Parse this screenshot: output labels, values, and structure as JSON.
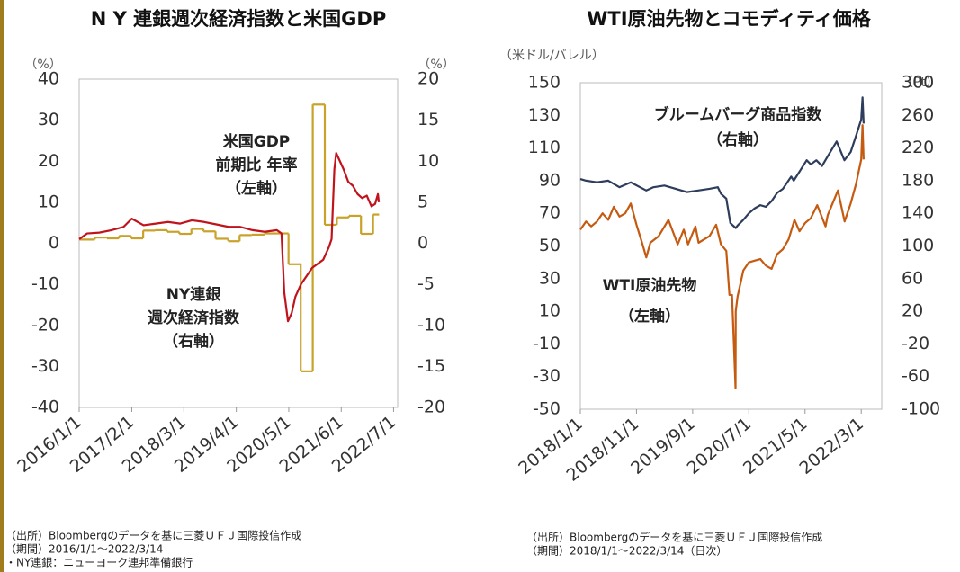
{
  "chart_data": [
    {
      "type": "line",
      "title": "N Y 連銀週次経済指数と米国GDP",
      "ylabel": "（%）",
      "y2label": "（%）",
      "xlim": [
        "2016/1/1",
        "2022/8/1"
      ],
      "xticks": [
        "2016/1/1",
        "2017/2/1",
        "2018/3/1",
        "2019/4/1",
        "2020/5/1",
        "2021/6/1",
        "2022/7/1"
      ],
      "ylim": [
        -40,
        40
      ],
      "yticks": [
        -40,
        -30,
        -20,
        -10,
        0,
        10,
        20,
        30,
        40
      ],
      "y2lim": [
        -20,
        20
      ],
      "y2ticks": [
        -20,
        -15,
        -10,
        -5,
        0,
        5,
        10,
        15,
        20
      ],
      "grid": false,
      "zero_line": false,
      "series": [
        {
          "color": "#c9a22a",
          "axis": "y",
          "step": true,
          "x_end": "2022/3/14",
          "x": [
            "2016/1/1",
            "2016/4/28",
            "2016/7/29",
            "2016/10/28",
            "2017/1/27",
            "2017/4/28",
            "2017/7/28",
            "2017/10/27",
            "2018/1/26",
            "2018/4/27",
            "2018/7/27",
            "2018/10/26",
            "2019/1/30",
            "2019/4/26",
            "2019/7/26",
            "2019/10/30",
            "2020/1/30",
            "2020/4/29",
            "2020/7/30",
            "2020/10/29",
            "2021/1/28",
            "2021/4/29",
            "2021/7/29",
            "2021/10/28",
            "2022/1/27"
          ],
          "values": [
            0.9,
            1.4,
            1.2,
            1.8,
            1.2,
            3.1,
            3.2,
            2.8,
            2.3,
            3.5,
            2.9,
            1.1,
            0.5,
            2.0,
            2.1,
            2.4,
            2.4,
            -5.1,
            -31.2,
            33.8,
            4.5,
            6.3,
            6.7,
            2.3,
            7.0
          ]
        },
        {
          "color": "#c0141c",
          "axis": "y2",
          "step": false,
          "x": [
            "2016/1/1",
            "2016/3/1",
            "2016/6/1",
            "2016/9/1",
            "2016/12/1",
            "2017/2/1",
            "2017/5/1",
            "2017/8/1",
            "2017/11/1",
            "2018/2/1",
            "2018/5/1",
            "2018/8/1",
            "2018/11/1",
            "2019/2/1",
            "2019/5/1",
            "2019/8/1",
            "2019/11/1",
            "2020/2/1",
            "2020/3/7",
            "2020/3/28",
            "2020/4/25",
            "2020/5/23",
            "2020/6/20",
            "2020/8/1",
            "2020/9/12",
            "2020/10/24",
            "2020/12/5",
            "2021/1/16",
            "2021/2/27",
            "2021/3/20",
            "2021/4/10",
            "2021/4/24",
            "2021/5/22",
            "2021/6/19",
            "2021/7/24",
            "2021/8/28",
            "2021/10/2",
            "2021/11/6",
            "2021/12/11",
            "2022/1/15",
            "2022/2/12",
            "2022/3/5",
            "2022/3/12"
          ],
          "values": [
            0.5,
            1.2,
            1.3,
            1.6,
            2.0,
            3.0,
            2.2,
            2.4,
            2.6,
            2.4,
            2.8,
            2.6,
            2.3,
            2.0,
            2.0,
            1.6,
            1.4,
            1.6,
            1.2,
            -6.0,
            -9.5,
            -8.5,
            -6.5,
            -5.0,
            -4.0,
            -3.0,
            -2.5,
            -2.0,
            -0.5,
            0.5,
            9.0,
            11.0,
            10.0,
            9.0,
            7.5,
            7.0,
            6.0,
            5.5,
            5.8,
            4.5,
            4.8,
            6.0,
            5.0
          ]
        }
      ],
      "annotations": [
        {
          "color": "#c9a22a",
          "lines": [
            "米国GDP",
            "前期比 年率",
            "（左軸）"
          ]
        },
        {
          "color": "#c0141c",
          "lines": [
            "NY連銀",
            "週次経済指数",
            "（右軸）"
          ]
        }
      ],
      "notes": [
        "（出所）Bloombergのデータを基に三菱ＵＦＪ国際投信作成",
        "（期間）2016/1/1～2022/3/14",
        "・NY連銀：ニューヨーク連邦準備銀行"
      ]
    },
    {
      "type": "line",
      "title": "WTI原油先物とコモディティ価格",
      "ylabel": "（米ドル/バレル）",
      "y2label": "（Pt）",
      "xlim": [
        "2018/1/1",
        "2022/6/20"
      ],
      "xticks": [
        "2018/1/1",
        "2018/11/1",
        "2019/9/1",
        "2020/7/1",
        "2021/5/1",
        "2022/3/1"
      ],
      "ylim": [
        -50,
        150
      ],
      "yticks": [
        -50,
        -30,
        -10,
        10,
        30,
        50,
        70,
        90,
        110,
        130,
        150
      ],
      "y2lim": [
        -100,
        300
      ],
      "y2ticks": [
        -100,
        -60,
        -20,
        20,
        60,
        100,
        140,
        180,
        220,
        260,
        300
      ],
      "grid": false,
      "zero_line": true,
      "series": [
        {
          "color": "#2e3d5c",
          "axis": "y2",
          "step": false,
          "x": [
            "2018/1/1",
            "2018/2/1",
            "2018/4/1",
            "2018/6/1",
            "2018/8/1",
            "2018/10/1",
            "2018/12/24",
            "2019/2/1",
            "2019/4/1",
            "2019/6/1",
            "2019/8/1",
            "2019/10/1",
            "2019/12/1",
            "2020/1/15",
            "2020/2/1",
            "2020/3/1",
            "2020/3/23",
            "2020/4/21",
            "2020/5/1",
            "2020/6/1",
            "2020/7/1",
            "2020/8/1",
            "2020/9/1",
            "2020/10/1",
            "2020/11/1",
            "2020/12/1",
            "2021/1/1",
            "2021/2/15",
            "2021/3/1",
            "2021/5/10",
            "2021/6/1",
            "2021/7/1",
            "2021/8/1",
            "2021/9/1",
            "2021/10/19",
            "2021/11/30",
            "2022/1/3",
            "2022/2/1",
            "2022/3/1",
            "2022/3/8",
            "2022/3/14"
          ],
          "values": [
            182,
            180,
            178,
            180,
            172,
            178,
            168,
            172,
            174,
            170,
            166,
            168,
            170,
            172,
            164,
            158,
            128,
            122,
            125,
            132,
            140,
            146,
            150,
            148,
            155,
            165,
            170,
            185,
            180,
            205,
            200,
            205,
            198,
            210,
            228,
            205,
            215,
            235,
            255,
            282,
            250
          ]
        },
        {
          "color": "#c55a11",
          "axis": "y",
          "step": false,
          "x": [
            "2018/1/1",
            "2018/2/1",
            "2018/3/1",
            "2018/4/1",
            "2018/5/1",
            "2018/6/1",
            "2018/7/1",
            "2018/8/1",
            "2018/9/1",
            "2018/10/1",
            "2018/11/1",
            "2018/12/1",
            "2018/12/24",
            "2019/1/15",
            "2019/3/1",
            "2019/4/23",
            "2019/6/12",
            "2019/7/15",
            "2019/8/7",
            "2019/9/16",
            "2019/10/3",
            "2019/12/1",
            "2020/1/6",
            "2020/2/1",
            "2020/3/1",
            "2020/3/18",
            "2020/4/1",
            "2020/4/20",
            "2020/4/21",
            "2020/5/1",
            "2020/6/1",
            "2020/7/1",
            "2020/8/1",
            "2020/9/1",
            "2020/10/1",
            "2020/11/1",
            "2020/12/1",
            "2021/1/1",
            "2021/2/1",
            "2021/3/5",
            "2021/4/1",
            "2021/5/1",
            "2021/6/1",
            "2021/7/6",
            "2021/8/20",
            "2021/9/1",
            "2021/10/26",
            "2021/12/1",
            "2022/1/3",
            "2022/2/1",
            "2022/3/1",
            "2022/3/8",
            "2022/3/14"
          ],
          "values": [
            60,
            65,
            62,
            65,
            70,
            66,
            74,
            68,
            70,
            76,
            63,
            52,
            43,
            52,
            56,
            66,
            51,
            60,
            51,
            62,
            52,
            56,
            63,
            51,
            47,
            20,
            20,
            -37,
            10,
            19,
            35,
            40,
            41,
            42,
            38,
            36,
            45,
            48,
            54,
            66,
            59,
            64,
            67,
            75,
            62,
            69,
            84,
            65,
            76,
            88,
            103,
            124,
            103
          ]
        }
      ],
      "annotations": [
        {
          "color": "#2e3d5c",
          "lines": [
            "ブルームバーグ商品指数",
            "（右軸）"
          ]
        },
        {
          "color": "#c55a11",
          "lines": [
            "WTI原油先物",
            "（左軸）"
          ]
        }
      ],
      "notes": [
        "（出所）Bloombergのデータを基に三菱ＵＦＪ国際投信作成",
        "（期間）2018/1/1～2022/3/14（日次）"
      ]
    }
  ]
}
